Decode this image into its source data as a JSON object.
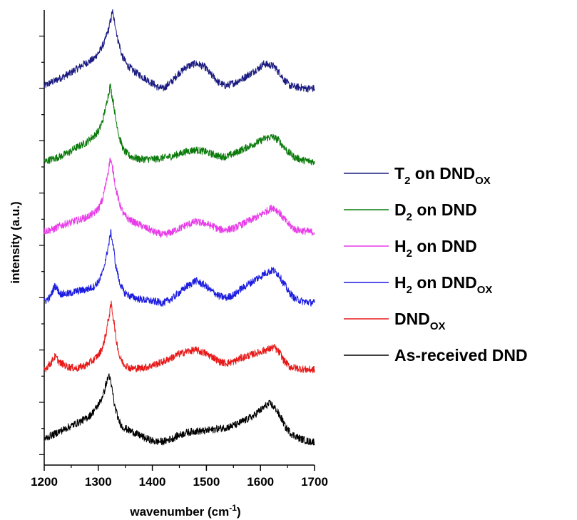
{
  "chart_data": {
    "type": "line",
    "xlabel": "wavenumber (cm",
    "xlabel_sup": "-1",
    "xlabel_close": ")",
    "ylabel": "intensity (a.u.)",
    "xlim": [
      1200,
      1700
    ],
    "x_ticks": [
      "1200",
      "1300",
      "1400",
      "1500",
      "1600",
      "1700"
    ],
    "ylim": [
      -0.4,
      17
    ],
    "y_tick_labels": "none",
    "grid": false,
    "legend_position": "right",
    "series": [
      {
        "name": "T2 on DNDox",
        "legend_main": "T",
        "legend_sub1": "2",
        "legend_mid": " on DND",
        "legend_sub2": "OX",
        "color": "#1a1a80",
        "offset": 14.0,
        "points": [
          [
            1200,
            14.1
          ],
          [
            1215,
            14.25
          ],
          [
            1230,
            14.4
          ],
          [
            1245,
            14.55
          ],
          [
            1260,
            14.75
          ],
          [
            1275,
            14.95
          ],
          [
            1290,
            15.1
          ],
          [
            1300,
            15.35
          ],
          [
            1310,
            15.7
          ],
          [
            1318,
            16.2
          ],
          [
            1323,
            16.6
          ],
          [
            1326,
            16.95
          ],
          [
            1330,
            16.55
          ],
          [
            1337,
            15.8
          ],
          [
            1345,
            15.2
          ],
          [
            1355,
            14.85
          ],
          [
            1370,
            14.6
          ],
          [
            1385,
            14.4
          ],
          [
            1400,
            14.2
          ],
          [
            1410,
            14.05
          ],
          [
            1420,
            14.0
          ],
          [
            1435,
            14.25
          ],
          [
            1450,
            14.6
          ],
          [
            1465,
            14.85
          ],
          [
            1480,
            14.95
          ],
          [
            1495,
            14.85
          ],
          [
            1510,
            14.5
          ],
          [
            1525,
            14.2
          ],
          [
            1535,
            14.1
          ],
          [
            1550,
            14.2
          ],
          [
            1565,
            14.35
          ],
          [
            1580,
            14.55
          ],
          [
            1595,
            14.75
          ],
          [
            1607,
            14.95
          ],
          [
            1615,
            14.9
          ],
          [
            1625,
            14.85
          ],
          [
            1635,
            14.6
          ],
          [
            1645,
            14.3
          ],
          [
            1655,
            14.1
          ],
          [
            1670,
            14.05
          ],
          [
            1685,
            14.0
          ],
          [
            1700,
            14.0
          ]
        ]
      },
      {
        "name": "D2 on DND",
        "legend_main": "D",
        "legend_sub1": "2",
        "legend_mid": " on DND",
        "legend_sub2": "",
        "color": "#0b7a0b",
        "offset": 11.2,
        "points": [
          [
            1200,
            11.2
          ],
          [
            1215,
            11.3
          ],
          [
            1230,
            11.4
          ],
          [
            1245,
            11.55
          ],
          [
            1260,
            11.75
          ],
          [
            1275,
            11.9
          ],
          [
            1290,
            12.15
          ],
          [
            1300,
            12.35
          ],
          [
            1307,
            12.7
          ],
          [
            1313,
            13.2
          ],
          [
            1318,
            13.7
          ],
          [
            1322,
            14.1
          ],
          [
            1327,
            13.55
          ],
          [
            1333,
            12.75
          ],
          [
            1340,
            12.05
          ],
          [
            1348,
            11.6
          ],
          [
            1360,
            11.4
          ],
          [
            1375,
            11.3
          ],
          [
            1390,
            11.3
          ],
          [
            1405,
            11.3
          ],
          [
            1420,
            11.35
          ],
          [
            1435,
            11.4
          ],
          [
            1450,
            11.5
          ],
          [
            1465,
            11.6
          ],
          [
            1480,
            11.65
          ],
          [
            1495,
            11.6
          ],
          [
            1510,
            11.5
          ],
          [
            1525,
            11.4
          ],
          [
            1537,
            11.4
          ],
          [
            1550,
            11.5
          ],
          [
            1565,
            11.65
          ],
          [
            1580,
            11.8
          ],
          [
            1595,
            11.95
          ],
          [
            1610,
            12.1
          ],
          [
            1622,
            12.15
          ],
          [
            1632,
            12.05
          ],
          [
            1642,
            11.8
          ],
          [
            1652,
            11.55
          ],
          [
            1665,
            11.35
          ],
          [
            1680,
            11.25
          ],
          [
            1700,
            11.2
          ]
        ]
      },
      {
        "name": "H2 on DND",
        "legend_main": "H",
        "legend_sub1": "2",
        "legend_mid": " on DND",
        "legend_sub2": "",
        "color": "#e83ce8",
        "offset": 8.5,
        "points": [
          [
            1200,
            8.55
          ],
          [
            1215,
            8.6
          ],
          [
            1230,
            8.75
          ],
          [
            1245,
            8.85
          ],
          [
            1260,
            8.95
          ],
          [
            1275,
            9.05
          ],
          [
            1290,
            9.2
          ],
          [
            1300,
            9.4
          ],
          [
            1307,
            9.7
          ],
          [
            1313,
            10.25
          ],
          [
            1318,
            10.8
          ],
          [
            1322,
            11.3
          ],
          [
            1327,
            10.9
          ],
          [
            1333,
            10.1
          ],
          [
            1340,
            9.55
          ],
          [
            1348,
            9.15
          ],
          [
            1360,
            8.95
          ],
          [
            1375,
            8.8
          ],
          [
            1390,
            8.65
          ],
          [
            1405,
            8.5
          ],
          [
            1420,
            8.4
          ],
          [
            1435,
            8.5
          ],
          [
            1450,
            8.65
          ],
          [
            1465,
            8.8
          ],
          [
            1480,
            8.9
          ],
          [
            1495,
            8.85
          ],
          [
            1510,
            8.75
          ],
          [
            1525,
            8.6
          ],
          [
            1537,
            8.6
          ],
          [
            1550,
            8.65
          ],
          [
            1565,
            8.8
          ],
          [
            1580,
            8.95
          ],
          [
            1595,
            9.1
          ],
          [
            1610,
            9.3
          ],
          [
            1623,
            9.45
          ],
          [
            1633,
            9.3
          ],
          [
            1642,
            9.05
          ],
          [
            1652,
            8.8
          ],
          [
            1665,
            8.6
          ],
          [
            1680,
            8.55
          ],
          [
            1700,
            8.5
          ]
        ]
      },
      {
        "name": "H2 on DNDox",
        "legend_main": "H",
        "legend_sub1": "2",
        "legend_mid": " on DND",
        "legend_sub2": "OX",
        "color": "#1c1ce0",
        "offset": 5.8,
        "points": [
          [
            1200,
            5.85
          ],
          [
            1210,
            6.0
          ],
          [
            1220,
            6.45
          ],
          [
            1230,
            6.15
          ],
          [
            1245,
            6.15
          ],
          [
            1260,
            6.25
          ],
          [
            1275,
            6.3
          ],
          [
            1290,
            6.4
          ],
          [
            1300,
            6.6
          ],
          [
            1308,
            6.95
          ],
          [
            1314,
            7.5
          ],
          [
            1319,
            8.0
          ],
          [
            1323,
            8.5
          ],
          [
            1327,
            8.05
          ],
          [
            1333,
            7.15
          ],
          [
            1340,
            6.55
          ],
          [
            1348,
            6.2
          ],
          [
            1360,
            6.05
          ],
          [
            1375,
            5.95
          ],
          [
            1390,
            5.9
          ],
          [
            1405,
            5.85
          ],
          [
            1420,
            5.8
          ],
          [
            1435,
            5.95
          ],
          [
            1450,
            6.2
          ],
          [
            1465,
            6.45
          ],
          [
            1480,
            6.65
          ],
          [
            1495,
            6.5
          ],
          [
            1510,
            6.25
          ],
          [
            1525,
            6.05
          ],
          [
            1537,
            6.0
          ],
          [
            1550,
            6.1
          ],
          [
            1565,
            6.35
          ],
          [
            1580,
            6.55
          ],
          [
            1595,
            6.75
          ],
          [
            1610,
            6.95
          ],
          [
            1623,
            7.05
          ],
          [
            1633,
            6.9
          ],
          [
            1643,
            6.55
          ],
          [
            1653,
            6.2
          ],
          [
            1665,
            5.95
          ],
          [
            1680,
            5.85
          ],
          [
            1700,
            5.8
          ]
        ]
      },
      {
        "name": "DNDox",
        "legend_main": "DND",
        "legend_sub1": "OX",
        "legend_mid": "",
        "legend_sub2": "",
        "color": "#e81818",
        "offset": 3.2,
        "points": [
          [
            1200,
            3.25
          ],
          [
            1210,
            3.45
          ],
          [
            1220,
            3.75
          ],
          [
            1230,
            3.5
          ],
          [
            1245,
            3.35
          ],
          [
            1260,
            3.3
          ],
          [
            1275,
            3.4
          ],
          [
            1290,
            3.6
          ],
          [
            1300,
            3.8
          ],
          [
            1308,
            4.1
          ],
          [
            1314,
            4.6
          ],
          [
            1319,
            5.2
          ],
          [
            1324,
            5.75
          ],
          [
            1328,
            5.2
          ],
          [
            1334,
            4.3
          ],
          [
            1340,
            3.7
          ],
          [
            1348,
            3.45
          ],
          [
            1360,
            3.3
          ],
          [
            1375,
            3.3
          ],
          [
            1390,
            3.35
          ],
          [
            1405,
            3.45
          ],
          [
            1420,
            3.55
          ],
          [
            1435,
            3.7
          ],
          [
            1450,
            3.85
          ],
          [
            1465,
            3.95
          ],
          [
            1480,
            4.0
          ],
          [
            1495,
            3.9
          ],
          [
            1510,
            3.75
          ],
          [
            1525,
            3.55
          ],
          [
            1537,
            3.5
          ],
          [
            1550,
            3.55
          ],
          [
            1565,
            3.7
          ],
          [
            1580,
            3.8
          ],
          [
            1595,
            3.9
          ],
          [
            1610,
            4.0
          ],
          [
            1625,
            4.1
          ],
          [
            1635,
            3.9
          ],
          [
            1645,
            3.55
          ],
          [
            1655,
            3.35
          ],
          [
            1670,
            3.3
          ],
          [
            1685,
            3.25
          ],
          [
            1700,
            3.25
          ]
        ]
      },
      {
        "name": "As-received DND",
        "legend_main": "As-received DND",
        "legend_sub1": "",
        "legend_mid": "",
        "legend_sub2": "",
        "color": "#000000",
        "offset": 0.5,
        "points": [
          [
            1200,
            0.6
          ],
          [
            1215,
            0.75
          ],
          [
            1230,
            0.9
          ],
          [
            1245,
            1.05
          ],
          [
            1260,
            1.2
          ],
          [
            1275,
            1.35
          ],
          [
            1285,
            1.5
          ],
          [
            1295,
            1.75
          ],
          [
            1303,
            2.0
          ],
          [
            1310,
            2.35
          ],
          [
            1315,
            2.75
          ],
          [
            1320,
            3.05
          ],
          [
            1325,
            2.55
          ],
          [
            1331,
            1.8
          ],
          [
            1338,
            1.3
          ],
          [
            1345,
            1.05
          ],
          [
            1360,
            0.9
          ],
          [
            1375,
            0.75
          ],
          [
            1390,
            0.6
          ],
          [
            1405,
            0.5
          ],
          [
            1420,
            0.5
          ],
          [
            1435,
            0.6
          ],
          [
            1450,
            0.75
          ],
          [
            1465,
            0.85
          ],
          [
            1480,
            0.9
          ],
          [
            1495,
            0.9
          ],
          [
            1510,
            0.95
          ],
          [
            1525,
            1.0
          ],
          [
            1540,
            1.05
          ],
          [
            1555,
            1.15
          ],
          [
            1570,
            1.3
          ],
          [
            1585,
            1.45
          ],
          [
            1600,
            1.7
          ],
          [
            1612,
            1.9
          ],
          [
            1618,
            1.95
          ],
          [
            1628,
            1.75
          ],
          [
            1638,
            1.4
          ],
          [
            1648,
            1.0
          ],
          [
            1660,
            0.75
          ],
          [
            1675,
            0.6
          ],
          [
            1690,
            0.5
          ],
          [
            1700,
            0.5
          ]
        ]
      }
    ]
  }
}
